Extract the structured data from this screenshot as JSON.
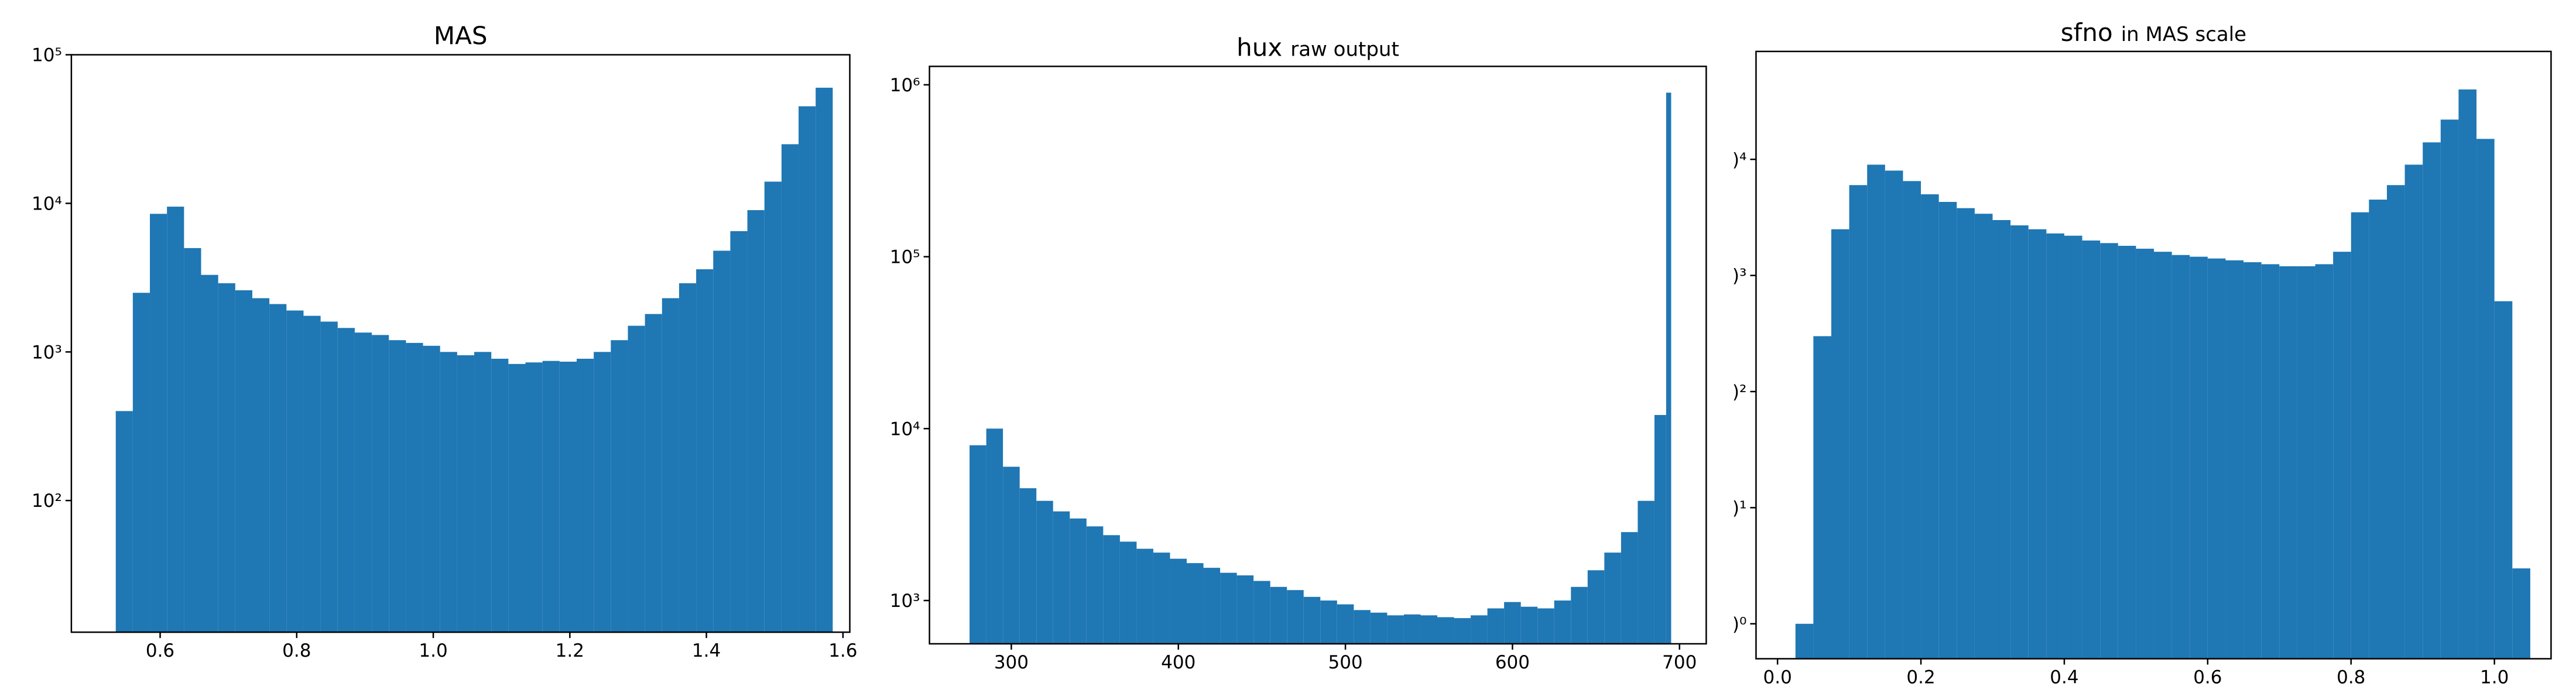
{
  "chart_data": [
    {
      "type": "histogram",
      "title": "MAS",
      "color": "#1f77b4",
      "log_y": true,
      "bins": [
        0.535,
        0.56,
        0.585,
        0.61,
        0.635,
        0.66,
        0.685,
        0.71,
        0.735,
        0.76,
        0.785,
        0.81,
        0.835,
        0.86,
        0.885,
        0.91,
        0.935,
        0.96,
        0.985,
        1.01,
        1.035,
        1.06,
        1.085,
        1.11,
        1.135,
        1.16,
        1.185,
        1.21,
        1.235,
        1.26,
        1.285,
        1.31,
        1.335,
        1.36,
        1.385,
        1.41,
        1.435,
        1.46,
        1.485,
        1.51,
        1.535,
        1.56,
        1.585
      ],
      "values": [
        400,
        2500,
        8500,
        9500,
        5000,
        3300,
        2900,
        2600,
        2300,
        2100,
        1900,
        1750,
        1600,
        1450,
        1350,
        1300,
        1200,
        1150,
        1100,
        1000,
        950,
        1000,
        900,
        830,
        850,
        870,
        860,
        900,
        1000,
        1200,
        1500,
        1800,
        2300,
        2900,
        3600,
        4800,
        6500,
        9000,
        14000,
        25000,
        45000,
        60000
      ],
      "xlim": [
        0.47,
        1.61
      ],
      "xticks": [
        0.6,
        0.8,
        {
          "value": 1.0,
          "label": "1.0"
        },
        1.2,
        1.4,
        1.6
      ],
      "ylim": [
        13,
        100000
      ],
      "yticks": [
        {
          "value": 100,
          "label": "10²"
        },
        {
          "value": 1000,
          "label": "10³"
        },
        {
          "value": 10000,
          "label": "10⁴"
        },
        {
          "value": 100000,
          "label": "10⁵"
        }
      ]
    },
    {
      "type": "histogram",
      "title": "hux",
      "subtitle": "raw output",
      "color": "#1f77b4",
      "log_y": true,
      "bins": [
        275,
        285,
        295,
        305,
        315,
        325,
        335,
        345,
        355,
        365,
        375,
        385,
        395,
        405,
        415,
        425,
        435,
        445,
        455,
        465,
        475,
        485,
        495,
        505,
        515,
        525,
        535,
        545,
        555,
        565,
        575,
        585,
        595,
        605,
        615,
        625,
        635,
        645,
        655,
        665,
        675,
        685,
        692,
        695
      ],
      "values": [
        8000,
        10000,
        6000,
        4500,
        3800,
        3300,
        3000,
        2700,
        2400,
        2200,
        2000,
        1900,
        1750,
        1650,
        1550,
        1450,
        1400,
        1300,
        1200,
        1150,
        1050,
        1000,
        950,
        880,
        850,
        820,
        830,
        820,
        800,
        790,
        820,
        900,
        980,
        920,
        900,
        1000,
        1200,
        1500,
        1900,
        2500,
        3800,
        12000,
        900000
      ],
      "xlim": [
        251,
        716
      ],
      "xticks": [
        300,
        400,
        500,
        600,
        700
      ],
      "ylim": [
        560,
        1280000
      ],
      "yticks": [
        {
          "value": 1000,
          "label": "10³"
        },
        {
          "value": 10000,
          "label": "10⁴"
        },
        {
          "value": 100000,
          "label": "10⁵"
        },
        {
          "value": 1000000,
          "label": "10⁶"
        }
      ]
    },
    {
      "type": "histogram",
      "title": "sfno",
      "subtitle": "in MAS scale",
      "color": "#1f77b4",
      "log_y": true,
      "bins": [
        0.025,
        0.05,
        0.075,
        0.1,
        0.125,
        0.15,
        0.175,
        0.2,
        0.225,
        0.25,
        0.275,
        0.3,
        0.325,
        0.35,
        0.375,
        0.4,
        0.425,
        0.45,
        0.475,
        0.5,
        0.525,
        0.55,
        0.575,
        0.6,
        0.625,
        0.65,
        0.675,
        0.7,
        0.725,
        0.75,
        0.775,
        0.8,
        0.825,
        0.85,
        0.875,
        0.9,
        0.925,
        0.95,
        0.975,
        1.0,
        1.025,
        1.05
      ],
      "values": [
        1,
        300,
        2500,
        6000,
        9000,
        8000,
        6500,
        5000,
        4300,
        3800,
        3400,
        3000,
        2700,
        2500,
        2300,
        2200,
        2000,
        1900,
        1800,
        1700,
        1600,
        1500,
        1450,
        1400,
        1350,
        1300,
        1250,
        1200,
        1200,
        1250,
        1600,
        3500,
        4500,
        6000,
        9000,
        14000,
        22000,
        40000,
        15000,
        600,
        3
      ],
      "xlim": [
        -0.03,
        1.079
      ],
      "xticks": [
        {
          "value": 0.0,
          "label": "0.0"
        },
        0.2,
        0.4,
        0.6,
        0.8,
        {
          "value": 1.0,
          "label": "1.0"
        }
      ],
      "ylim": [
        0.5,
        85000
      ],
      "yticks": [
        {
          "value": 1,
          "label": ")⁰"
        },
        {
          "value": 10,
          "label": ")¹"
        },
        {
          "value": 100,
          "label": ")²"
        },
        {
          "value": 1000,
          "label": ")³"
        },
        {
          "value": 10000,
          "label": ")⁴"
        }
      ]
    }
  ]
}
